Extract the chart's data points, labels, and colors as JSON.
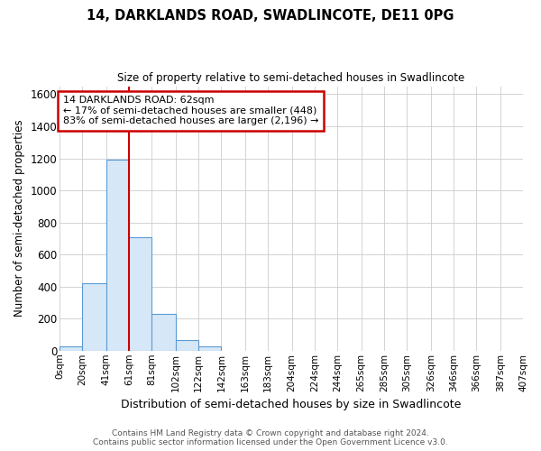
{
  "title1": "14, DARKLANDS ROAD, SWADLINCOTE, DE11 0PG",
  "title2": "Size of property relative to semi-detached houses in Swadlincote",
  "xlabel": "Distribution of semi-detached houses by size in Swadlincote",
  "ylabel": "Number of semi-detached properties",
  "footer1": "Contains HM Land Registry data © Crown copyright and database right 2024.",
  "footer2": "Contains public sector information licensed under the Open Government Licence v3.0.",
  "bin_edges": [
    0,
    20,
    41,
    61,
    81,
    102,
    122,
    142,
    163,
    183,
    204,
    224,
    244,
    265,
    285,
    305,
    326,
    346,
    366,
    387,
    407
  ],
  "bin_labels": [
    "0sqm",
    "20sqm",
    "41sqm",
    "61sqm",
    "81sqm",
    "102sqm",
    "122sqm",
    "142sqm",
    "163sqm",
    "183sqm",
    "204sqm",
    "224sqm",
    "244sqm",
    "265sqm",
    "285sqm",
    "305sqm",
    "326sqm",
    "346sqm",
    "366sqm",
    "387sqm",
    "407sqm"
  ],
  "bar_heights": [
    25,
    420,
    1190,
    710,
    230,
    65,
    25,
    0,
    0,
    0,
    0,
    0,
    0,
    0,
    0,
    0,
    0,
    0,
    0,
    0
  ],
  "bar_color": "#d6e8f7",
  "bar_edge_color": "#5b9bd5",
  "grid_color": "#cccccc",
  "bg_color": "#ffffff",
  "property_line_x": 61,
  "property_line_color": "#cc0000",
  "annotation_line1": "14 DARKLANDS ROAD: 62sqm",
  "annotation_line2": "← 17% of semi-detached houses are smaller (448)",
  "annotation_line3": "83% of semi-detached houses are larger (2,196) →",
  "annotation_box_color": "#cc0000",
  "ylim": [
    0,
    1650
  ],
  "yticks": [
    0,
    200,
    400,
    600,
    800,
    1000,
    1200,
    1400,
    1600
  ]
}
